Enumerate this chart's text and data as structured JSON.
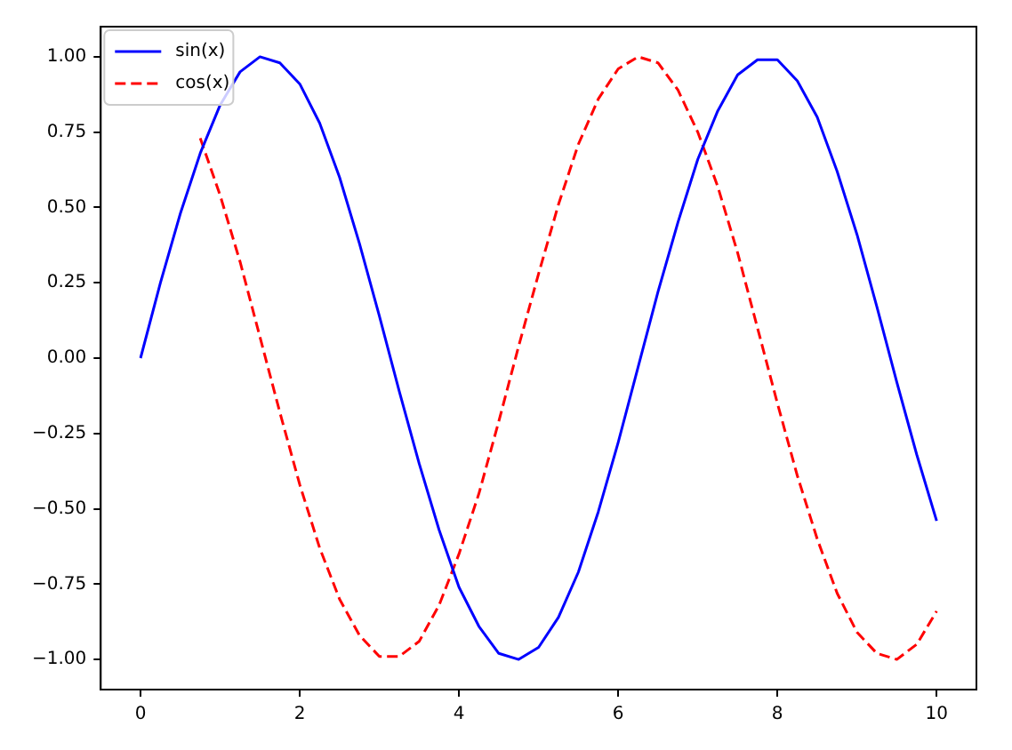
{
  "chart_data": {
    "type": "line",
    "x": [
      0,
      0.25,
      0.5,
      0.75,
      1,
      1.25,
      1.5,
      1.75,
      2,
      2.25,
      2.5,
      2.75,
      3,
      3.25,
      3.5,
      3.75,
      4,
      4.25,
      4.5,
      4.75,
      5,
      5.25,
      5.5,
      5.75,
      6,
      6.25,
      6.5,
      6.75,
      7,
      7.25,
      7.5,
      7.75,
      8,
      8.25,
      8.5,
      8.75,
      9,
      9.25,
      9.5,
      9.75,
      10
    ],
    "series": [
      {
        "name": "sin(x)",
        "color": "#0000ff",
        "line_style": "solid",
        "values": [
          0,
          0.25,
          0.48,
          0.68,
          0.84,
          0.95,
          1.0,
          0.98,
          0.91,
          0.78,
          0.6,
          0.38,
          0.14,
          -0.11,
          -0.35,
          -0.57,
          -0.76,
          -0.89,
          -0.98,
          -1.0,
          -0.96,
          -0.86,
          -0.71,
          -0.51,
          -0.28,
          -0.03,
          0.22,
          0.45,
          0.66,
          0.82,
          0.94,
          0.99,
          0.99,
          0.92,
          0.8,
          0.62,
          0.41,
          0.17,
          -0.08,
          -0.32,
          -0.54
        ]
      },
      {
        "name": "cos(x)",
        "color": "#ff0000",
        "line_style": "dashed",
        "values": [
          null,
          null,
          null,
          0.73,
          0.54,
          0.32,
          0.07,
          -0.18,
          -0.42,
          -0.63,
          -0.8,
          -0.92,
          -0.99,
          -0.99,
          -0.94,
          -0.82,
          -0.65,
          -0.45,
          -0.21,
          0.04,
          0.28,
          0.51,
          0.71,
          0.86,
          0.96,
          1.0,
          0.98,
          0.89,
          0.75,
          0.57,
          0.35,
          0.1,
          -0.15,
          -0.39,
          -0.6,
          -0.78,
          -0.91,
          -0.98,
          -1.0,
          -0.95,
          -0.84
        ]
      }
    ],
    "xlim": [
      -0.5,
      10.5
    ],
    "xticks": [
      0,
      2,
      4,
      6,
      8,
      10
    ],
    "ylim": [
      -1.1,
      1.1
    ],
    "yticks": [
      {
        "value": -1,
        "label": "−1.00"
      },
      {
        "value": -0.75,
        "label": "−0.75"
      },
      {
        "value": -0.5,
        "label": "−0.50"
      },
      {
        "value": -0.25,
        "label": "−0.25"
      },
      {
        "value": 0,
        "label": "0.00"
      },
      {
        "value": 0.25,
        "label": "0.25"
      },
      {
        "value": 0.5,
        "label": "0.50"
      },
      {
        "value": 0.75,
        "label": "0.75"
      },
      {
        "value": 1,
        "label": "1.00"
      }
    ],
    "grid": false,
    "legend": "top left",
    "marker": "none"
  }
}
